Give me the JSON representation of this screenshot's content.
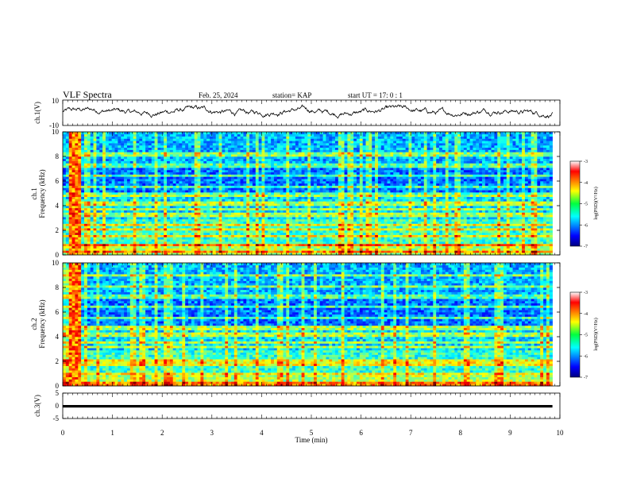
{
  "header": {
    "title": "VLF Spectra",
    "date": "Feb. 25, 2024",
    "station": "station= KAP",
    "start": "start  UT =   17: 0  : 1"
  },
  "colorbar": {
    "label": "log(PSD)(V²/Hz)",
    "ticks": [
      "-3",
      "-4",
      "-5",
      "-6",
      "-7"
    ],
    "range": [
      -7,
      -3
    ],
    "colormap": "jet"
  },
  "colors": {
    "waveform": "#000000",
    "ch3_band": "#000000",
    "background": "#ffffff"
  },
  "chart_data": [
    {
      "type": "line",
      "panel": "ch.1 waveform",
      "ylabel": "ch.1(V)",
      "ylim": [
        -10,
        10
      ],
      "yticks": [
        "10",
        "-10"
      ],
      "xlim": [
        0,
        9.85
      ],
      "description_values": "fluctuating waveform between about -4 and 6 V"
    },
    {
      "type": "heatmap",
      "panel": "ch.1 spectrogram",
      "ylabel_lines": [
        "ch.1",
        "Frequency (kHz)"
      ],
      "ylim": [
        0,
        10
      ],
      "yticks": [
        "0",
        "2",
        "4",
        "6",
        "8",
        "10"
      ],
      "xlim": [
        0,
        9.85
      ],
      "zrange": [
        -7,
        -3
      ],
      "bright_band_minutes": [
        0.15,
        0.35
      ],
      "strong_lines_khz": [
        0.3,
        0.8,
        1.6,
        2.1,
        2.4,
        3.3,
        3.7,
        4.2,
        4.9,
        5.5,
        6.5,
        7.3,
        8.2
      ]
    },
    {
      "type": "heatmap",
      "panel": "ch.2 spectrogram",
      "ylabel_lines": [
        "ch.2",
        "Frequency (kHz)"
      ],
      "ylim": [
        0,
        10
      ],
      "yticks": [
        "0",
        "2",
        "4",
        "6",
        "8",
        "10"
      ],
      "xlim": [
        0,
        9.85
      ],
      "zrange": [
        -7,
        -3
      ],
      "bright_band_minutes": [
        0.15,
        0.35
      ],
      "strong_lines_khz": [
        0.2,
        1.0,
        1.8,
        2.1,
        3.2,
        3.6,
        4.2,
        4.7,
        5.5,
        6.4,
        7.3,
        8.1,
        9.0
      ]
    },
    {
      "type": "line",
      "panel": "ch.3 waveform",
      "ylabel": "ch.3(V)",
      "ylim": [
        -5,
        5
      ],
      "yticks": [
        "5",
        "0",
        "-5"
      ],
      "xlim": [
        0,
        9.85
      ],
      "constant_band_volts": [
        -0.7,
        0.3
      ]
    }
  ],
  "xaxis": {
    "label": "Time  (min)",
    "ticks": [
      "0",
      "1",
      "2",
      "3",
      "4",
      "5",
      "6",
      "7",
      "8",
      "9",
      "10"
    ],
    "range": [
      0,
      10
    ]
  }
}
